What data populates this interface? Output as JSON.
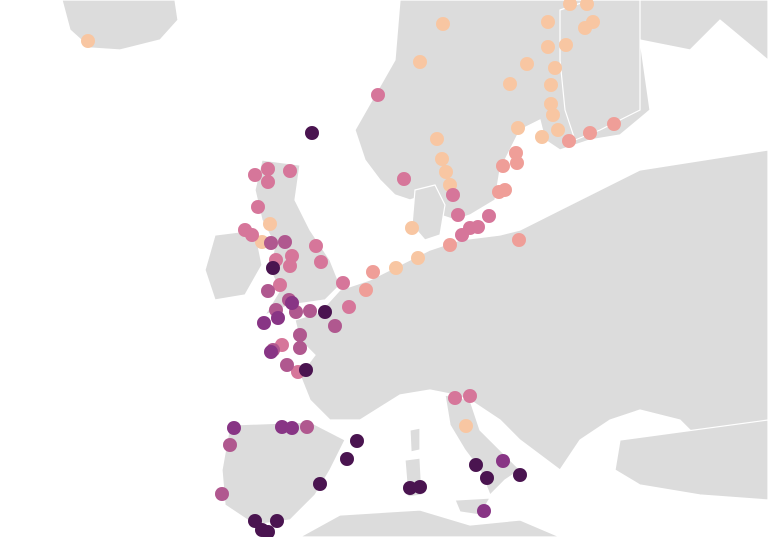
{
  "map": {
    "region": "Europe",
    "land_color": "#dcdcdc",
    "sea_color": "#ffffff",
    "border_color": "#ffffff",
    "palette": [
      "#f8c6a2",
      "#ef9e98",
      "#d6769a",
      "#b0588f",
      "#883585",
      "#4a1450"
    ]
  }
}
